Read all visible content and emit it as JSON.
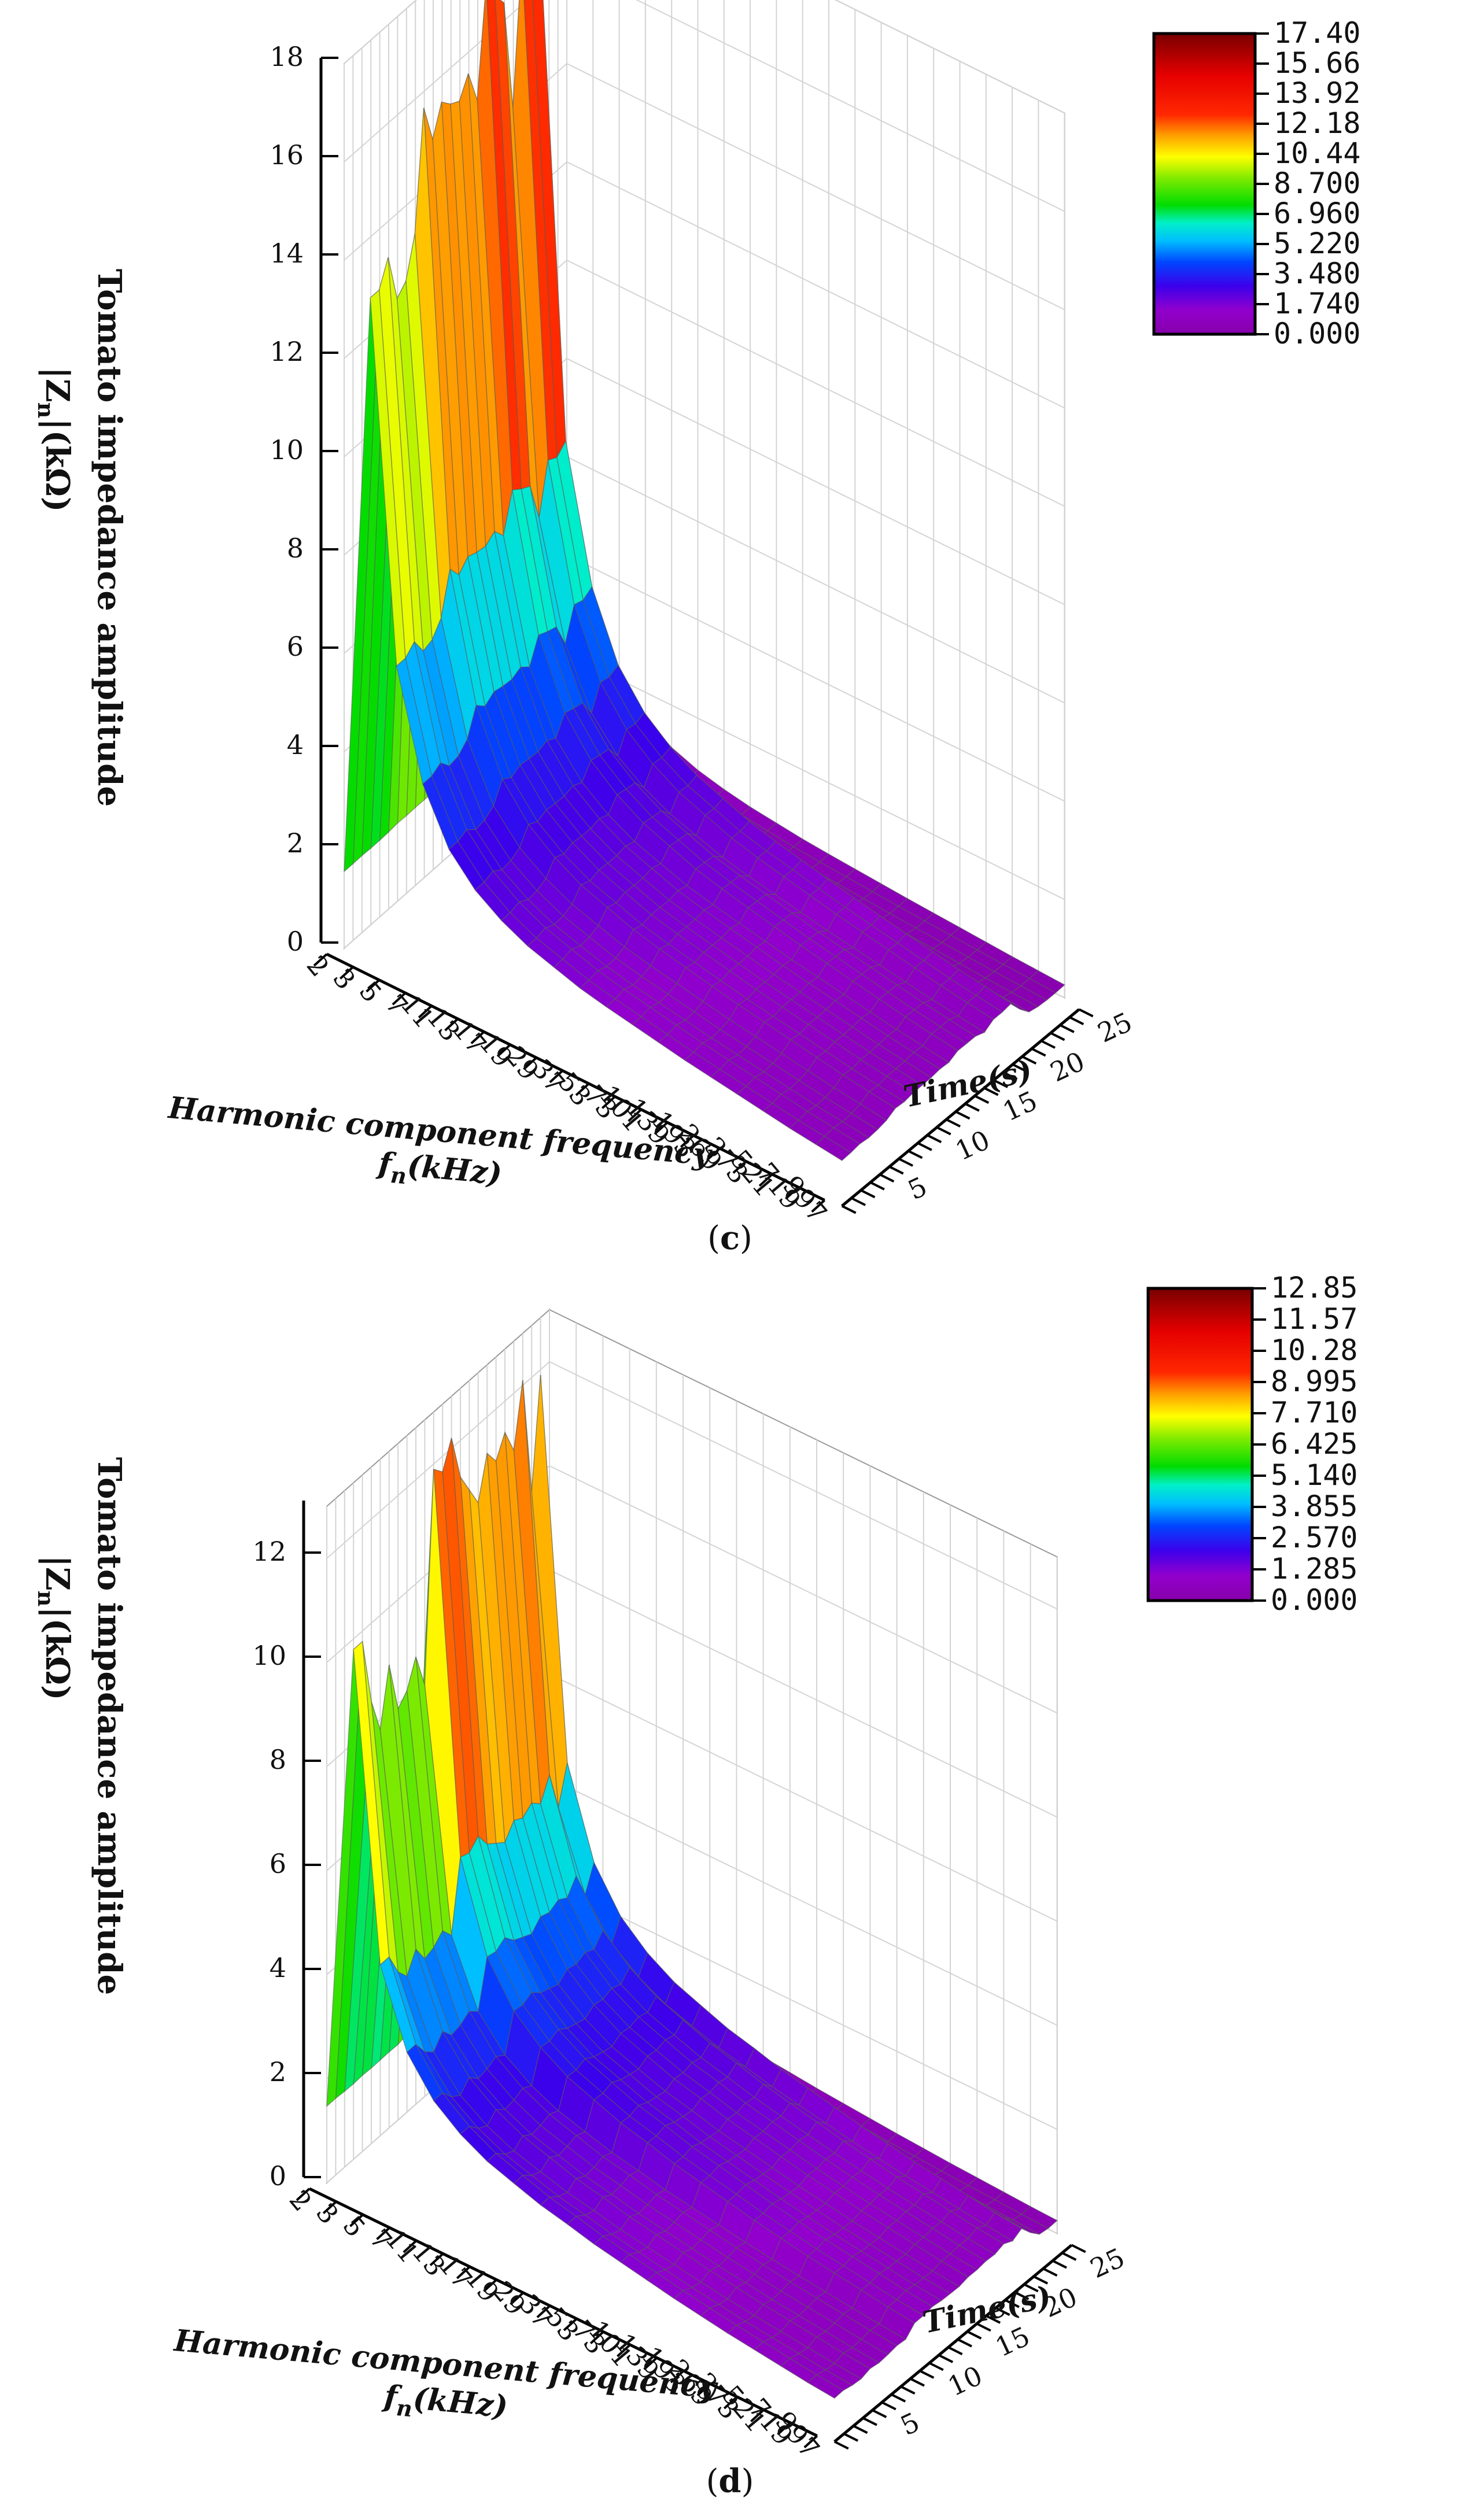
{
  "chart_data": [
    {
      "id": "c",
      "type": "surface3d",
      "caption": "c",
      "zlabel_line1": "Tomato impedance amplitude",
      "zlabel_line2": "|Z",
      "zlabel_sub": "n",
      "zlabel_line2_rest": "|(kΩ)",
      "xlabel_line1": "Harmonic component frequency",
      "xlabel_line2_main": "f",
      "xlabel_line2_sub": "n",
      "xlabel_line2_rest": "(kHz)",
      "ylabel": "Time(s)",
      "z_ticks": [
        "0",
        "2",
        "4",
        "6",
        "8",
        "10",
        "12",
        "14",
        "16",
        "18"
      ],
      "zlim": [
        0,
        18
      ],
      "t_ticks": [
        "5",
        "10",
        "15",
        "20",
        "25"
      ],
      "tlim": [
        0,
        25
      ],
      "freq_ticks": [
        "2",
        "3",
        "5",
        "7",
        "11",
        "13",
        "17",
        "19",
        "29",
        "37",
        "53",
        "73",
        "101",
        "139",
        "193",
        "269",
        "373",
        "521",
        "719",
        "997"
      ],
      "colorbar_ticks": [
        "17.40",
        "15.66",
        "13.92",
        "12.18",
        "10.44",
        "8.700",
        "6.960",
        "5.220",
        "3.480",
        "1.740",
        "0.000"
      ],
      "colorbar_range": [
        0,
        17.4
      ],
      "frequency_profile_kOhm": [
        1.6,
        6.5,
        3.1,
        2.3,
        1.8,
        1.5,
        1.3,
        1.15,
        1.05,
        0.95,
        0.88,
        0.82,
        0.76,
        0.7,
        0.65,
        0.6,
        0.55,
        0.5,
        0.46,
        0.42
      ],
      "peak_ridge_by_time": {
        "time_s": [
          1,
          2,
          3,
          4,
          5,
          6,
          7,
          8,
          9,
          10,
          11,
          12,
          13,
          14,
          15,
          16,
          17,
          18,
          19,
          20,
          21,
          22,
          23,
          24
        ],
        "values_kOhm": [
          13.5,
          14.0,
          13.0,
          13.2,
          14.0,
          16.4,
          15.6,
          16.2,
          16.0,
          15.9,
          16.3,
          15.6,
          17.8,
          17.4,
          17.1,
          14.8,
          17.7,
          17.4,
          17.9,
          10.0,
          4.0,
          2.5,
          1.8,
          1.5
        ]
      }
    },
    {
      "id": "d",
      "type": "surface3d",
      "caption": "d",
      "zlabel_line1": "Tomato impedance amplitude",
      "zlabel_line2": "|Z",
      "zlabel_sub": "n",
      "zlabel_line2_rest": "|(kΩ)",
      "xlabel_line1": "Harmonic component frequency",
      "xlabel_line2_main": "f",
      "xlabel_line2_sub": "n",
      "xlabel_line2_rest": "(kHz)",
      "ylabel": "Time(s)",
      "z_ticks": [
        "0",
        "2",
        "4",
        "6",
        "8",
        "10",
        "12"
      ],
      "zlim": [
        0,
        13
      ],
      "t_ticks": [
        "5",
        "10",
        "15",
        "20",
        "25"
      ],
      "tlim": [
        0,
        25
      ],
      "freq_ticks": [
        "2",
        "3",
        "5",
        "7",
        "11",
        "13",
        "17",
        "19",
        "29",
        "37",
        "53",
        "73",
        "101",
        "139",
        "193",
        "269",
        "373",
        "521",
        "719",
        "997"
      ],
      "colorbar_ticks": [
        "12.85",
        "11.57",
        "10.28",
        "8.995",
        "7.710",
        "6.425",
        "5.140",
        "3.855",
        "2.570",
        "1.285",
        "0.000"
      ],
      "colorbar_range": [
        0,
        12.85
      ],
      "frequency_profile_kOhm": [
        1.5,
        5.0,
        2.3,
        1.8,
        1.5,
        1.3,
        1.15,
        1.05,
        0.95,
        0.88,
        0.8,
        0.74,
        0.68,
        0.62,
        0.57,
        0.52,
        0.48,
        0.44,
        0.4,
        0.37
      ],
      "peak_ridge_by_time": {
        "time_s": [
          1,
          2,
          3,
          4,
          5,
          6,
          7,
          8,
          9,
          10,
          11,
          12,
          13,
          14,
          15,
          16,
          17,
          18,
          19,
          20,
          21,
          22,
          23,
          24
        ],
        "values_kOhm": [
          10.5,
          9.2,
          8.5,
          9.6,
          8.6,
          8.8,
          9.3,
          8.6,
          12.6,
          12.4,
          12.9,
          12.0,
          11.6,
          11.2,
          12.0,
          11.7,
          12.1,
          11.6,
          12.8,
          10.5,
          12.6,
          7.0,
          2.5,
          1.6
        ]
      }
    }
  ]
}
